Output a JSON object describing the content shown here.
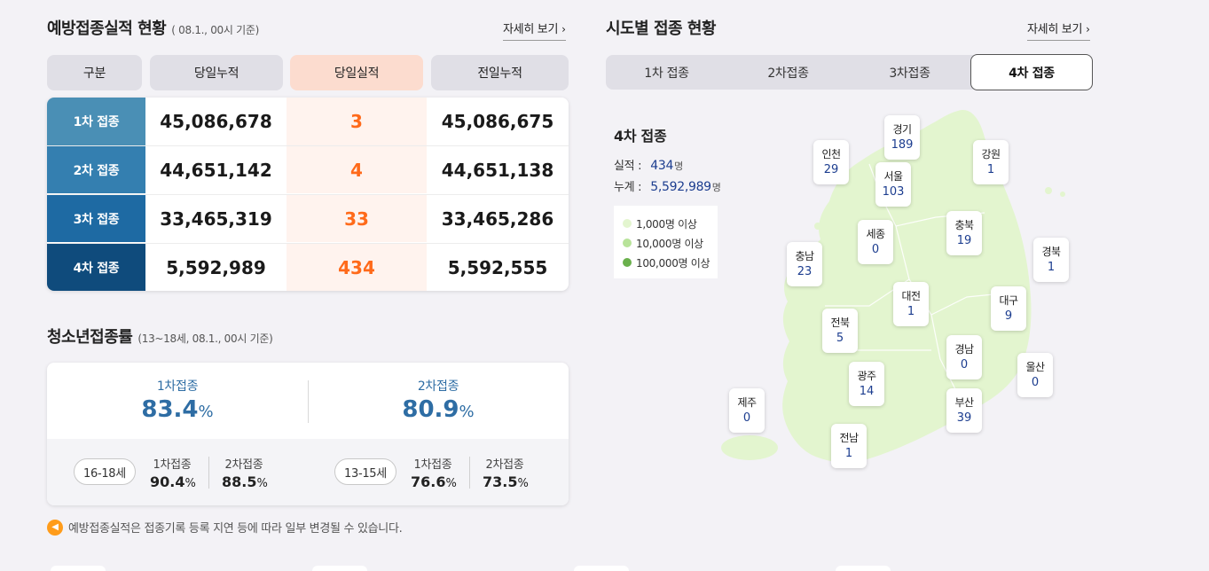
{
  "vaccination": {
    "title": "예방접종실적 현황",
    "subtitle": "( 08.1., 00시 기준)",
    "more": "자세히 보기",
    "headers": [
      "구분",
      "당일누적",
      "당일실적",
      "전일누적"
    ],
    "rows": [
      {
        "label": "1차 접종",
        "cumulative_today": "45,086,678",
        "today": "3",
        "cumulative_prev": "45,086,675",
        "color": "#4a8fb5"
      },
      {
        "label": "2차 접종",
        "cumulative_today": "44,651,142",
        "today": "4",
        "cumulative_prev": "44,651,138",
        "color": "#347fb0"
      },
      {
        "label": "3차 접종",
        "cumulative_today": "33,465,319",
        "today": "33",
        "cumulative_prev": "33,465,286",
        "color": "#1e6aa3"
      },
      {
        "label": "4차 접종",
        "cumulative_today": "5,592,989",
        "today": "434",
        "cumulative_prev": "5,592,555",
        "color": "#0f4b7c"
      }
    ]
  },
  "teen": {
    "title": "청소년접종률",
    "subtitle": "(13~18세, 08.1., 00시 기준)",
    "first_label": "1차접종",
    "first_value": "83.4",
    "second_label": "2차접종",
    "second_value": "80.9",
    "unit": "%",
    "groups": [
      {
        "age": "16-18세",
        "first_label": "1차접종",
        "first": "90.4",
        "second_label": "2차접종",
        "second": "88.5"
      },
      {
        "age": "13-15세",
        "first_label": "1차접종",
        "first": "76.6",
        "second_label": "2차접종",
        "second": "73.5"
      }
    ]
  },
  "notice": "예방접종실적은 접종기록 등록 지연 등에 따라 일부 변경될 수 있습니다.",
  "regional": {
    "title": "시도별 접종 현황",
    "more": "자세히 보기",
    "tabs": [
      "1차 접종",
      "2차접종",
      "3차접종",
      "4차 접종"
    ],
    "active_tab": 3,
    "dose_title": "4차 접종",
    "performance_label": "실적 :",
    "performance_value": "434",
    "total_label": "누계 :",
    "total_value": "5,592,989",
    "count_unit": "명",
    "legend": [
      {
        "label": "1,000명 이상",
        "color": "#e3f5cf"
      },
      {
        "label": "10,000명 이상",
        "color": "#b8e39a"
      },
      {
        "label": "100,000명 이상",
        "color": "#6ab04c"
      }
    ],
    "map_color": "#e3f5cf",
    "regions": [
      {
        "id": "gyeonggi",
        "name": "경기",
        "count": "189"
      },
      {
        "id": "incheon",
        "name": "인천",
        "count": "29"
      },
      {
        "id": "seoul",
        "name": "서울",
        "count": "103"
      },
      {
        "id": "gangwon",
        "name": "강원",
        "count": "1"
      },
      {
        "id": "sejong",
        "name": "세종",
        "count": "0"
      },
      {
        "id": "chungbuk",
        "name": "충북",
        "count": "19"
      },
      {
        "id": "chungnam",
        "name": "충남",
        "count": "23"
      },
      {
        "id": "gyeongbuk",
        "name": "경북",
        "count": "1"
      },
      {
        "id": "daejeon",
        "name": "대전",
        "count": "1"
      },
      {
        "id": "daegu",
        "name": "대구",
        "count": "9"
      },
      {
        "id": "jeonbuk",
        "name": "전북",
        "count": "5"
      },
      {
        "id": "gyeongnam",
        "name": "경남",
        "count": "0"
      },
      {
        "id": "ulsan",
        "name": "울산",
        "count": "0"
      },
      {
        "id": "gwangju",
        "name": "광주",
        "count": "14"
      },
      {
        "id": "jeju",
        "name": "제주",
        "count": "0"
      },
      {
        "id": "busan",
        "name": "부산",
        "count": "39"
      },
      {
        "id": "jeonnam",
        "name": "전남",
        "count": "1"
      }
    ]
  }
}
